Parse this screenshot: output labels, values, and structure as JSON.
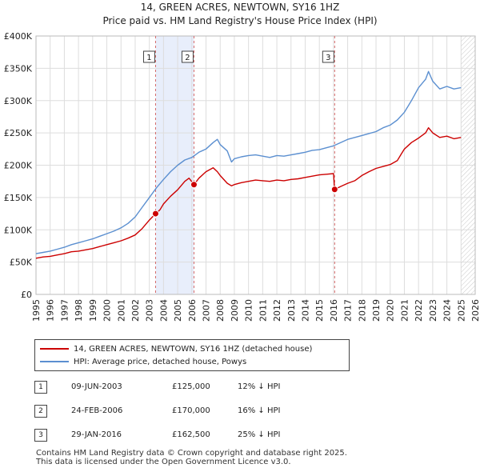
{
  "header": {
    "title": "14, GREEN ACRES, NEWTOWN, SY16 1HZ",
    "subtitle": "Price paid vs. HM Land Registry's House Price Index (HPI)"
  },
  "colors": {
    "property": "#cc0000",
    "hpi": "#5b8fd0",
    "shade": "#e8eefb",
    "grid": "#dddddd"
  },
  "chart_data": {
    "type": "line",
    "xlim": [
      1995,
      2026
    ],
    "ylim": [
      0,
      400000
    ],
    "x_ticks": [
      "1995",
      "1996",
      "1997",
      "1998",
      "1999",
      "2000",
      "2001",
      "2002",
      "2003",
      "2004",
      "2005",
      "2006",
      "2007",
      "2008",
      "2009",
      "2010",
      "2011",
      "2012",
      "2013",
      "2014",
      "2015",
      "2016",
      "2017",
      "2018",
      "2019",
      "2020",
      "2021",
      "2022",
      "2023",
      "2024",
      "2025",
      "2026"
    ],
    "y_ticks": [
      {
        "value": 0,
        "label": "£0"
      },
      {
        "value": 50000,
        "label": "£50K"
      },
      {
        "value": 100000,
        "label": "£100K"
      },
      {
        "value": 150000,
        "label": "£150K"
      },
      {
        "value": 200000,
        "label": "£200K"
      },
      {
        "value": 250000,
        "label": "£250K"
      },
      {
        "value": 300000,
        "label": "£300K"
      },
      {
        "value": 350000,
        "label": "£350K"
      },
      {
        "value": 400000,
        "label": "£400K"
      }
    ],
    "shaded_ranges": [
      [
        2003.44,
        2006.15
      ]
    ],
    "future_from": 2025.0,
    "series": [
      {
        "name": "14, GREEN ACRES, NEWTOWN, SY16 1HZ (detached house)",
        "color": "#cc0000",
        "x": [
          1995.0,
          1995.5,
          1996.0,
          1996.5,
          1997.0,
          1997.5,
          1998.0,
          1998.5,
          1999.0,
          1999.5,
          2000.0,
          2000.5,
          2001.0,
          2001.5,
          2002.0,
          2002.5,
          2003.0,
          2003.44,
          2003.75,
          2004.0,
          2004.5,
          2005.0,
          2005.5,
          2005.8,
          2006.15,
          2006.5,
          2007.0,
          2007.5,
          2007.8,
          2008.0,
          2008.5,
          2008.8,
          2009.0,
          2009.5,
          2010.0,
          2010.5,
          2011.0,
          2011.5,
          2012.0,
          2012.5,
          2013.0,
          2013.5,
          2014.0,
          2014.5,
          2015.0,
          2015.5,
          2016.0,
          2016.08,
          2016.5,
          2017.0,
          2017.5,
          2018.0,
          2018.5,
          2019.0,
          2019.5,
          2020.0,
          2020.5,
          2020.8,
          2021.0,
          2021.5,
          2022.0,
          2022.5,
          2022.7,
          2023.0,
          2023.5,
          2024.0,
          2024.5,
          2025.0
        ],
        "values": [
          56000,
          58000,
          59000,
          61000,
          63000,
          66000,
          67000,
          69000,
          71000,
          74000,
          77000,
          80000,
          83000,
          87000,
          92000,
          102000,
          115000,
          125000,
          131000,
          140000,
          152000,
          162000,
          175000,
          180000,
          170000,
          180000,
          190000,
          196000,
          190000,
          184000,
          172000,
          168000,
          170000,
          173000,
          175000,
          177000,
          176000,
          175000,
          177000,
          176000,
          178000,
          179000,
          181000,
          183000,
          185000,
          186000,
          187000,
          162500,
          167000,
          172000,
          176000,
          184000,
          190000,
          195000,
          198000,
          201000,
          207000,
          218000,
          225000,
          235000,
          242000,
          250000,
          258000,
          250000,
          243000,
          245000,
          241000,
          243000
        ]
      },
      {
        "name": "HPI: Average price, detached house, Powys",
        "color": "#5b8fd0",
        "x": [
          1995.0,
          1995.5,
          1996.0,
          1996.5,
          1997.0,
          1997.5,
          1998.0,
          1998.5,
          1999.0,
          1999.5,
          2000.0,
          2000.5,
          2001.0,
          2001.5,
          2002.0,
          2002.5,
          2003.0,
          2003.5,
          2004.0,
          2004.5,
          2005.0,
          2005.5,
          2006.0,
          2006.5,
          2007.0,
          2007.5,
          2007.8,
          2008.0,
          2008.5,
          2008.8,
          2009.0,
          2009.5,
          2010.0,
          2010.5,
          2011.0,
          2011.5,
          2012.0,
          2012.5,
          2013.0,
          2013.5,
          2014.0,
          2014.5,
          2015.0,
          2015.5,
          2016.0,
          2016.5,
          2017.0,
          2017.5,
          2018.0,
          2018.5,
          2019.0,
          2019.5,
          2020.0,
          2020.5,
          2021.0,
          2021.5,
          2022.0,
          2022.5,
          2022.7,
          2023.0,
          2023.5,
          2024.0,
          2024.5,
          2025.0
        ],
        "values": [
          63000,
          65000,
          67000,
          70000,
          73000,
          77000,
          80000,
          83000,
          86000,
          90000,
          94000,
          98000,
          103000,
          110000,
          120000,
          135000,
          150000,
          165000,
          178000,
          190000,
          200000,
          208000,
          212000,
          220000,
          225000,
          235000,
          240000,
          232000,
          222000,
          205000,
          210000,
          213000,
          215000,
          216000,
          214000,
          212000,
          215000,
          214000,
          216000,
          218000,
          220000,
          223000,
          224000,
          227000,
          230000,
          235000,
          240000,
          243000,
          246000,
          249000,
          252000,
          258000,
          262000,
          270000,
          282000,
          300000,
          320000,
          333000,
          345000,
          330000,
          318000,
          322000,
          318000,
          320000
        ]
      }
    ],
    "markers": [
      {
        "label": "1",
        "x": 2003.44,
        "y": 125000
      },
      {
        "label": "2",
        "x": 2006.15,
        "y": 170000
      },
      {
        "label": "3",
        "x": 2016.08,
        "y": 162500
      }
    ]
  },
  "legend": {
    "property_label": "14, GREEN ACRES, NEWTOWN, SY16 1HZ (detached house)",
    "hpi_label": "HPI: Average price, detached house, Powys"
  },
  "sales": [
    {
      "num": "1",
      "date": "09-JUN-2003",
      "price": "£125,000",
      "hpi": "12% ↓ HPI"
    },
    {
      "num": "2",
      "date": "24-FEB-2006",
      "price": "£170,000",
      "hpi": "16% ↓ HPI"
    },
    {
      "num": "3",
      "date": "29-JAN-2016",
      "price": "£162,500",
      "hpi": "25% ↓ HPI"
    }
  ],
  "footer": {
    "line1": "Contains HM Land Registry data © Crown copyright and database right 2025.",
    "line2": "This data is licensed under the Open Government Licence v3.0."
  }
}
